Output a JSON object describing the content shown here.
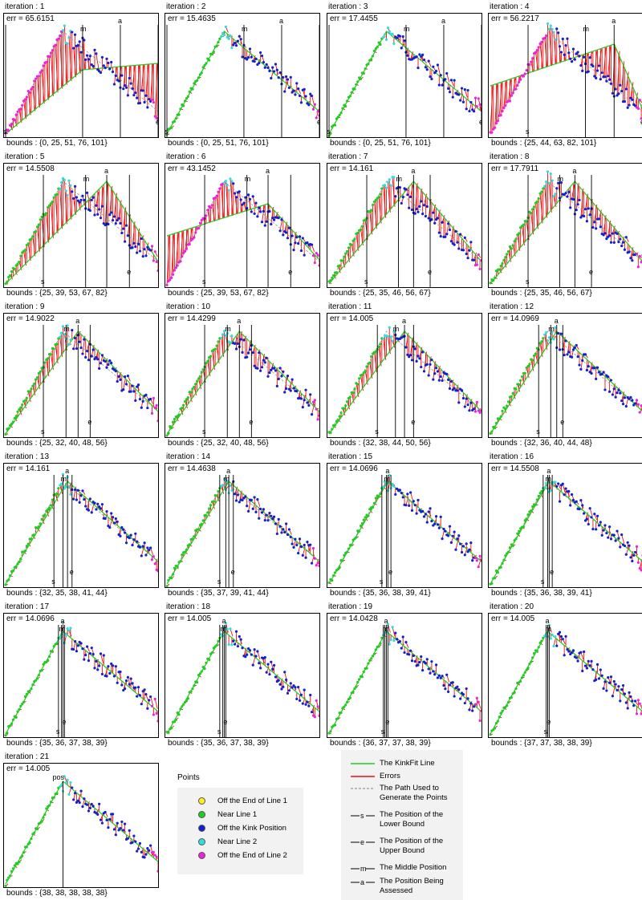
{
  "panels": [
    {
      "iteration": "iteration : 1",
      "err": "err = 65.6151",
      "bounds": "bounds : {0, 25, 51, 76, 101}",
      "b": [
        0,
        25,
        51,
        76,
        101
      ]
    },
    {
      "iteration": "iteration : 2",
      "err": "err = 15.4635",
      "bounds": "bounds : {0, 25, 51, 76, 101}",
      "b": [
        0,
        25,
        51,
        76,
        101
      ]
    },
    {
      "iteration": "iteration : 3",
      "err": "err = 17.4455",
      "bounds": "bounds : {0, 25, 51, 76, 101}",
      "b": [
        0,
        25,
        51,
        76,
        101
      ]
    },
    {
      "iteration": "iteration : 4",
      "err": "err = 56.2217",
      "bounds": "bounds : {25, 44, 63, 82, 101}",
      "b": [
        25,
        44,
        63,
        82,
        101
      ]
    },
    {
      "iteration": "iteration : 5",
      "err": "err = 14.5508",
      "bounds": "bounds : {25, 39, 53, 67, 82}",
      "b": [
        25,
        39,
        53,
        67,
        82
      ]
    },
    {
      "iteration": "iteration : 6",
      "err": "err = 43.1452",
      "bounds": "bounds : {25, 39, 53, 67, 82}",
      "b": [
        25,
        39,
        53,
        67,
        82
      ]
    },
    {
      "iteration": "iteration : 7",
      "err": "err = 14.161",
      "bounds": "bounds : {25, 35, 46, 56, 67}",
      "b": [
        25,
        35,
        46,
        56,
        67
      ]
    },
    {
      "iteration": "iteration : 8",
      "err": "err = 17.7911",
      "bounds": "bounds : {25, 35, 46, 56, 67}",
      "b": [
        25,
        35,
        46,
        56,
        67
      ]
    },
    {
      "iteration": "iteration : 9",
      "err": "err = 14.9022",
      "bounds": "bounds : {25, 32, 40, 48, 56}",
      "b": [
        25,
        32,
        40,
        48,
        56
      ]
    },
    {
      "iteration": "iteration : 10",
      "err": "err = 14.4299",
      "bounds": "bounds : {25, 32, 40, 48, 56}",
      "b": [
        25,
        32,
        40,
        48,
        56
      ]
    },
    {
      "iteration": "iteration : 11",
      "err": "err = 14.005",
      "bounds": "bounds : {32, 38, 44, 50, 56}",
      "b": [
        32,
        38,
        44,
        50,
        56
      ]
    },
    {
      "iteration": "iteration : 12",
      "err": "err = 14.0969",
      "bounds": "bounds : {32, 36, 40, 44, 48}",
      "b": [
        32,
        36,
        40,
        44,
        48
      ]
    },
    {
      "iteration": "iteration : 13",
      "err": "err = 14.161",
      "bounds": "bounds : {32, 35, 38, 41, 44}",
      "b": [
        32,
        35,
        38,
        41,
        44
      ]
    },
    {
      "iteration": "iteration : 14",
      "err": "err = 14.4638",
      "bounds": "bounds : {35, 37, 39, 41, 44}",
      "b": [
        35,
        37,
        39,
        41,
        44
      ]
    },
    {
      "iteration": "iteration : 15",
      "err": "err = 14.0696",
      "bounds": "bounds : {35, 36, 38, 39, 41}",
      "b": [
        35,
        36,
        38,
        39,
        41
      ]
    },
    {
      "iteration": "iteration : 16",
      "err": "err = 14.5508",
      "bounds": "bounds : {35, 36, 38, 39, 41}",
      "b": [
        35,
        36,
        38,
        39,
        41
      ]
    },
    {
      "iteration": "iteration : 17",
      "err": "err = 14.0696",
      "bounds": "bounds : {35, 36, 37, 38, 39}",
      "b": [
        35,
        36,
        37,
        38,
        39
      ]
    },
    {
      "iteration": "iteration : 18",
      "err": "err = 14.005",
      "bounds": "bounds : {35, 36, 37, 38, 39}",
      "b": [
        35,
        36,
        37,
        38,
        39
      ]
    },
    {
      "iteration": "iteration : 19",
      "err": "err = 14.0428",
      "bounds": "bounds : {36, 37, 37, 38, 39}",
      "b": [
        36,
        37,
        37,
        38,
        39
      ]
    },
    {
      "iteration": "iteration : 20",
      "err": "err = 14.005",
      "bounds": "bounds : {37, 37, 38, 38, 39}",
      "b": [
        37,
        37,
        38,
        38,
        39
      ]
    },
    {
      "iteration": "iteration : 21",
      "err": "err = 14.005",
      "bounds": "bounds : {38, 38, 38, 38, 38}",
      "b": [
        38,
        38,
        38,
        38,
        38
      ]
    }
  ],
  "marker_labels": {
    "lower": "s",
    "upper": "e",
    "middle": "m",
    "assessed": "a",
    "final": "pos"
  },
  "points_legend": {
    "title": "Points",
    "items": [
      {
        "label": "Off the End of Line 1",
        "color": "#ffee22"
      },
      {
        "label": "Near Line 1",
        "color": "#22cc22"
      },
      {
        "label": "Off the Kink Position",
        "color": "#1122cc"
      },
      {
        "label": "Near Line 2",
        "color": "#33dddd"
      },
      {
        "label": "Off the End of Line 2",
        "color": "#ee22dd"
      }
    ]
  },
  "lines_legend": {
    "items": [
      {
        "label": "The KinkFit Line",
        "kind": "green"
      },
      {
        "label": "Errors",
        "kind": "red"
      },
      {
        "label": "The Path Used to Generate the Points",
        "kind": "dashed"
      },
      {
        "label": "The Position of the Lower Bound",
        "kind": "marker",
        "mark": "s"
      },
      {
        "label": "The Position of the Upper Bound",
        "kind": "marker",
        "mark": "e"
      },
      {
        "label": "The Middle Position",
        "kind": "marker",
        "mark": "m"
      },
      {
        "label": "The Position Being Assessed",
        "kind": "marker",
        "mark": "a"
      }
    ]
  },
  "colors": {
    "fit": "#22cc22",
    "error": "#ee1111",
    "path": "#999999"
  }
}
